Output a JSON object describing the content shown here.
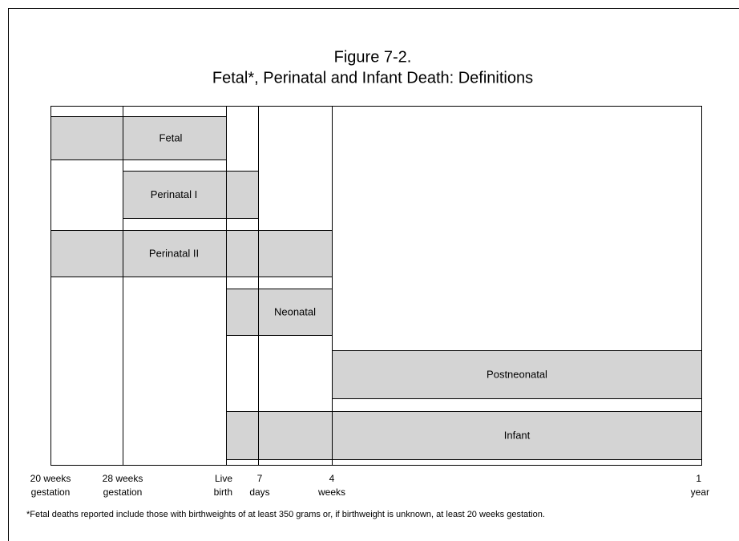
{
  "figure": {
    "title": [
      "Figure 7-2.",
      "Fetal*, Perinatal and Infant Death: Definitions"
    ],
    "bars": [
      {
        "label": "Fetal"
      },
      {
        "label": "Perinatal I"
      },
      {
        "label": "Perinatal II"
      },
      {
        "label": "Neonatal"
      },
      {
        "label": "Postneonatal"
      },
      {
        "label": "Infant"
      }
    ],
    "axis_labels": [
      [
        "20 weeks",
        "gestation"
      ],
      [
        "28 weeks",
        "gestation"
      ],
      [
        "Live",
        "birth"
      ],
      [
        "7",
        "days"
      ],
      [
        "4",
        "weeks"
      ],
      [
        "1",
        "year"
      ]
    ],
    "footnote": "*Fetal deaths reported include those with birthweights of at least 350 grams or, if birthweight is unknown, at least 20 weeks gestation."
  }
}
